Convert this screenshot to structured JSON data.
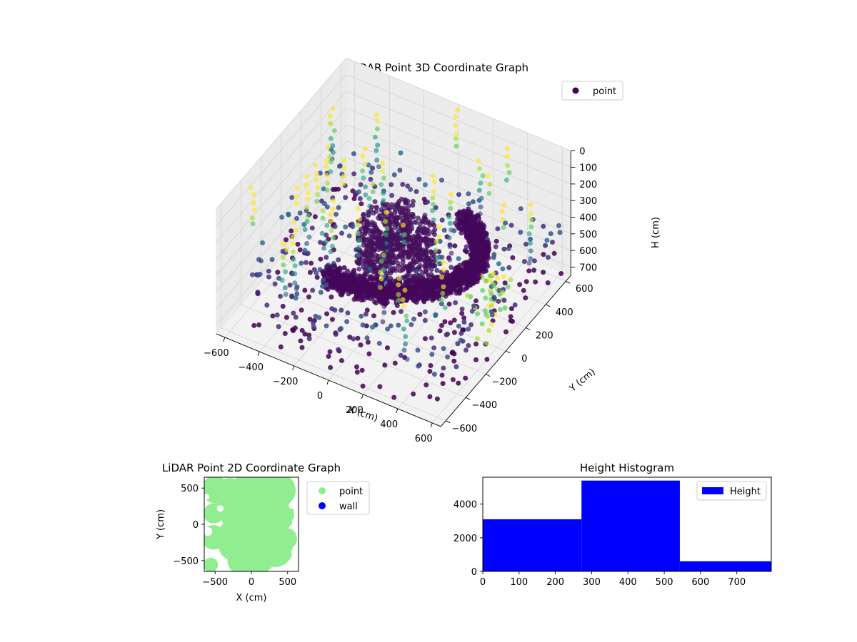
{
  "chart_data": [
    {
      "type": "scatter",
      "projection": "3d",
      "title": "LiDAR Point 3D Coordinate Graph",
      "xlabel": "X (cm)",
      "ylabel": "Y (cm)",
      "zlabel": "H (cm)",
      "xlim": [
        -650,
        650
      ],
      "ylim": [
        -650,
        650
      ],
      "zlim": [
        0,
        750
      ],
      "z_inverted": true,
      "x_ticks": [
        "−600",
        "−400",
        "−200",
        "0",
        "200",
        "400",
        "600"
      ],
      "y_ticks": [
        "−600",
        "−400",
        "−200",
        "0",
        "200",
        "400",
        "600"
      ],
      "z_ticks": [
        "0",
        "100",
        "200",
        "300",
        "400",
        "500",
        "600",
        "700"
      ],
      "colormap": "viridis",
      "grid": true,
      "legend": {
        "placement": "top-right",
        "entries": [
          {
            "label": "point",
            "color": "#440154"
          }
        ]
      },
      "series": [
        {
          "name": "point"
        }
      ]
    },
    {
      "type": "scatter",
      "title": "LiDAR Point 2D Coordinate Graph",
      "xlabel": "X (cm)",
      "ylabel": "Y (cm)",
      "xlim": [
        -650,
        650
      ],
      "ylim": [
        -650,
        650
      ],
      "x_ticks": [
        "−500",
        "0",
        "500"
      ],
      "y_ticks": [
        "−500",
        "0",
        "500"
      ],
      "legend": {
        "placement": "outside-right",
        "entries": [
          {
            "label": "point",
            "color": "#90ee90"
          },
          {
            "label": "wall",
            "color": "#0000ff"
          }
        ]
      },
      "series": [
        {
          "name": "point",
          "color": "#90ee90"
        },
        {
          "name": "wall",
          "color": "#0000ff",
          "values": []
        }
      ]
    },
    {
      "type": "bar",
      "subtype": "histogram",
      "title": "Height Histogram",
      "xlabel": "",
      "ylabel": "",
      "xlim": [
        0,
        795
      ],
      "ylim": [
        0,
        5600
      ],
      "x_ticks": [
        "0",
        "100",
        "200",
        "300",
        "400",
        "500",
        "600",
        "700"
      ],
      "y_ticks": [
        "0",
        "2000",
        "4000"
      ],
      "bins": [
        {
          "from": 0,
          "to": 272,
          "count": 3100
        },
        {
          "from": 272,
          "to": 543,
          "count": 5400
        },
        {
          "from": 543,
          "to": 795,
          "count": 600
        }
      ],
      "color": "#0000ff",
      "legend": {
        "placement": "top-right",
        "entries": [
          {
            "label": "Height",
            "color": "#0000ff"
          }
        ]
      },
      "series": [
        {
          "name": "Height",
          "values": [
            3100,
            5400,
            600
          ]
        }
      ]
    }
  ]
}
